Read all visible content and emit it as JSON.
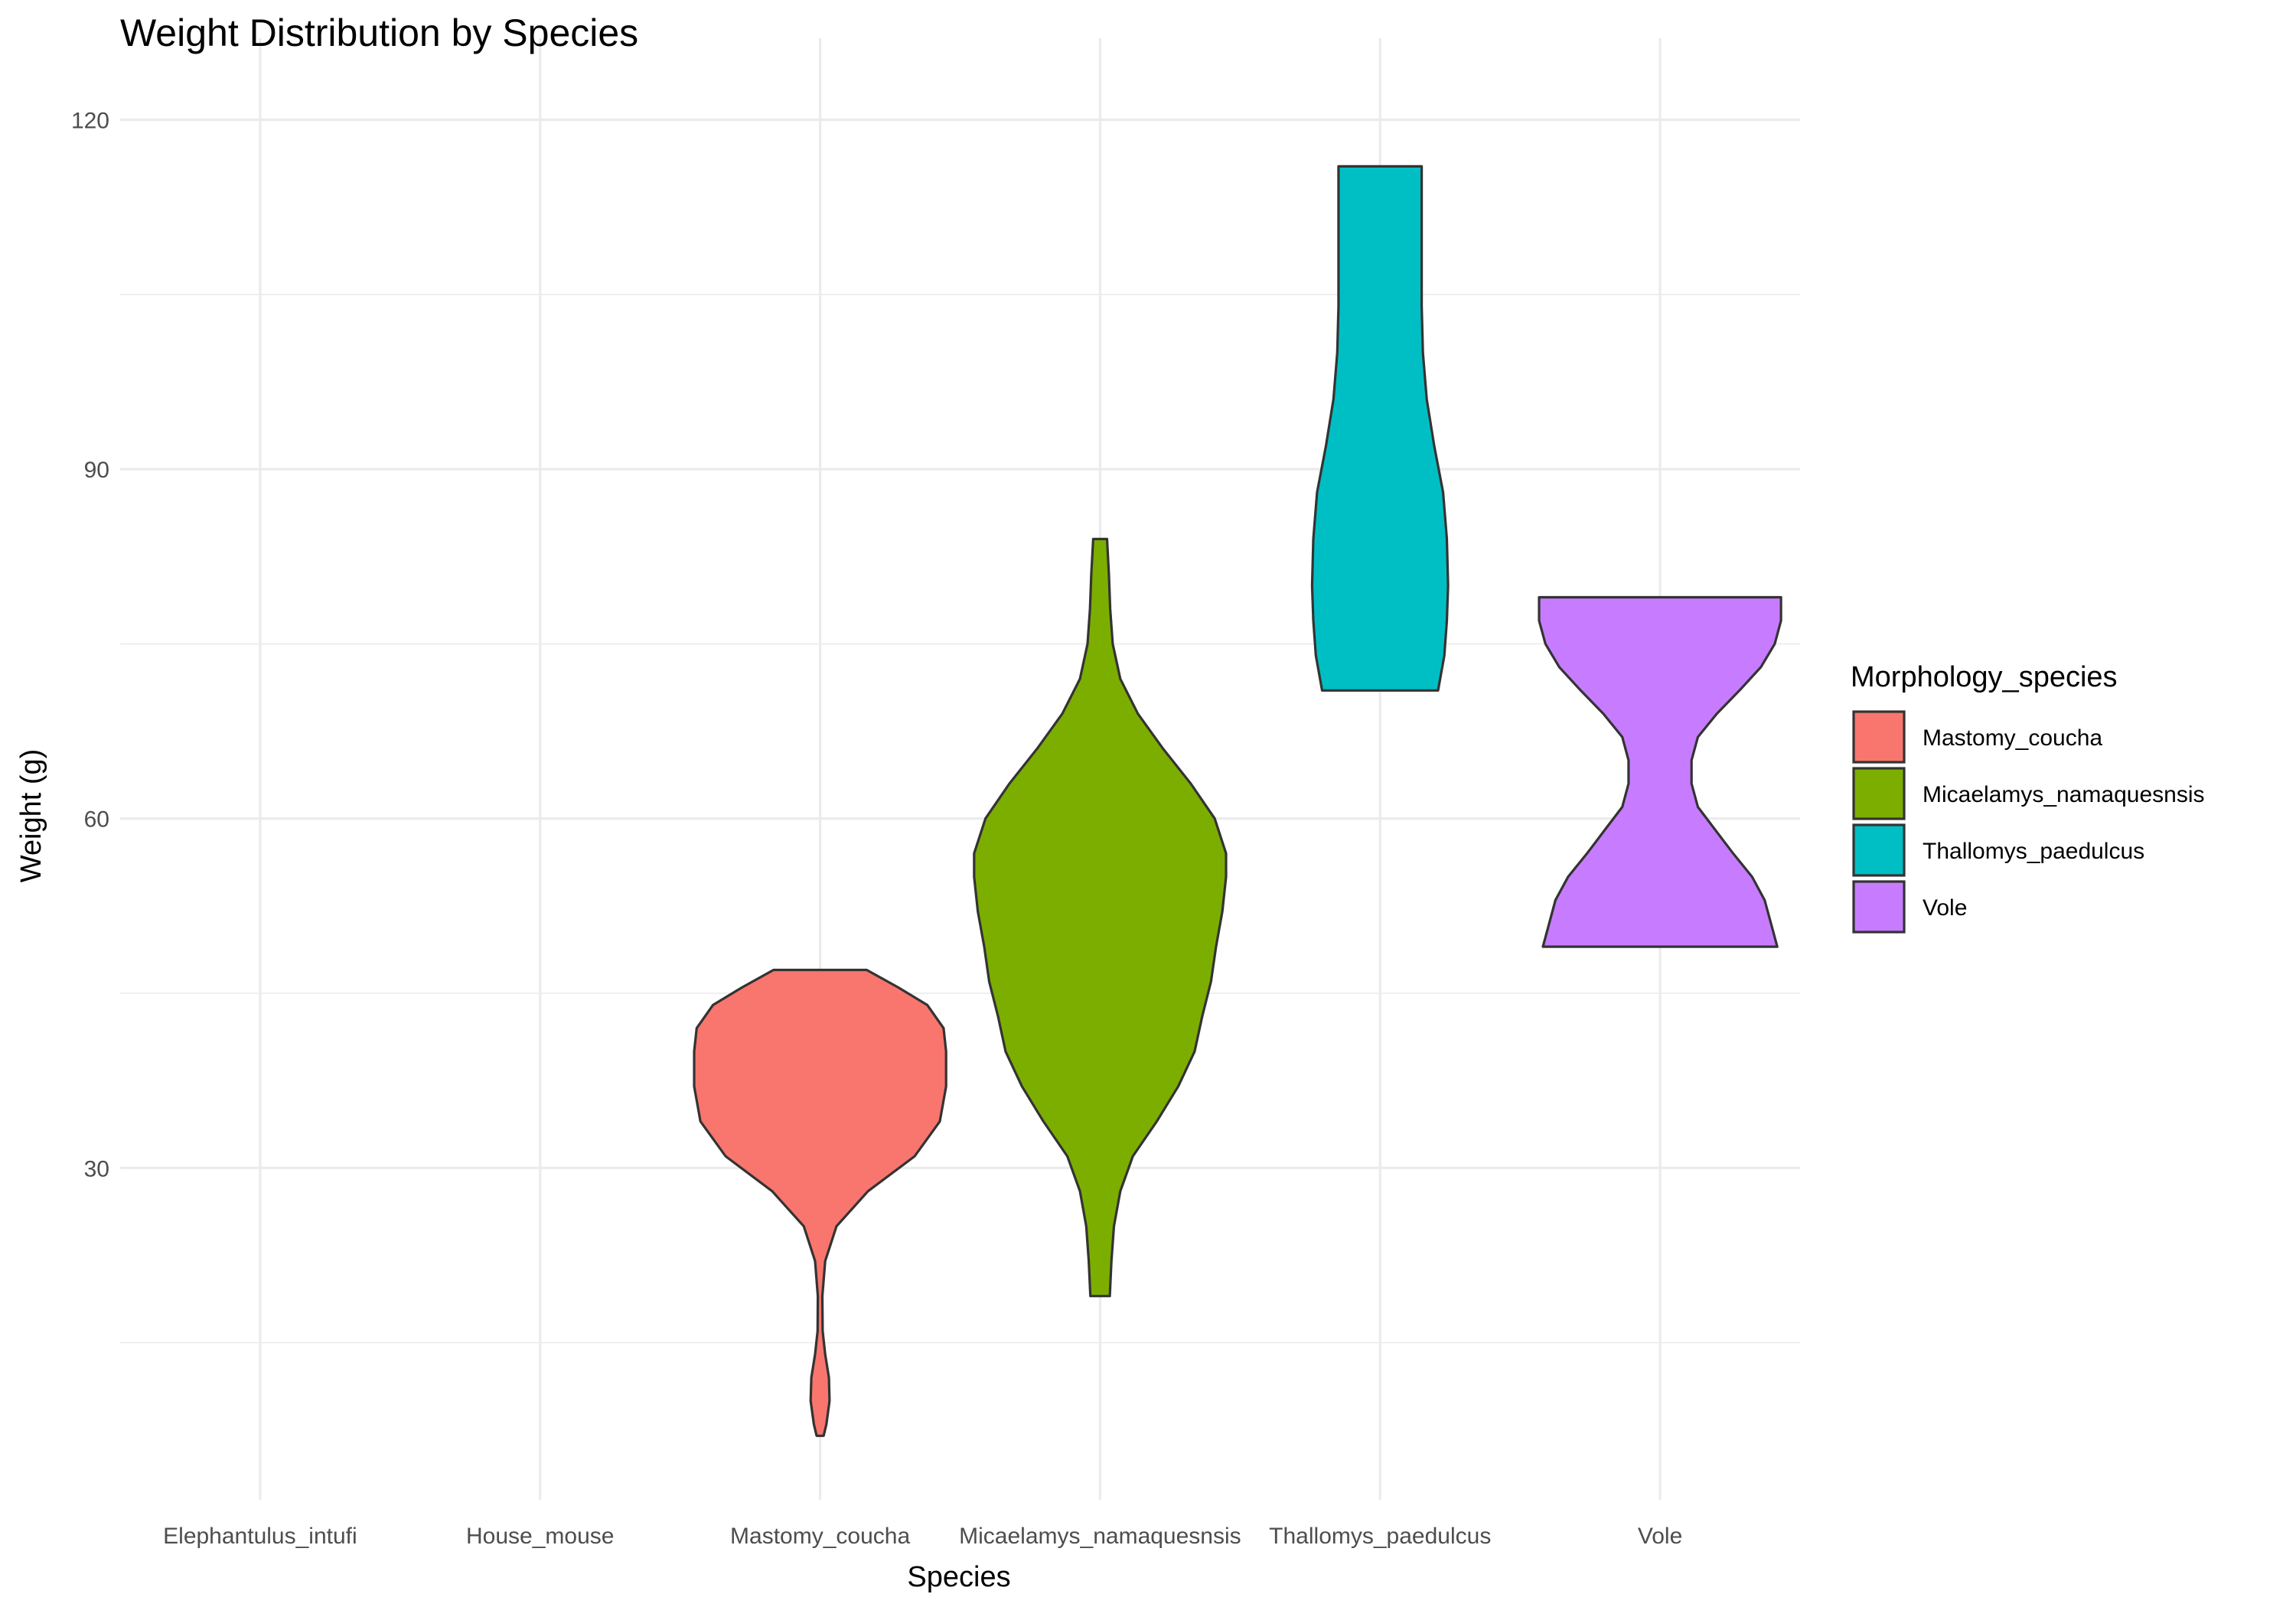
{
  "chart_data": {
    "type": "violin",
    "title": "Weight Distribution by Species",
    "xlabel": "Species",
    "ylabel": "Weight (g)",
    "categories": [
      "Elephantulus_intufi",
      "House_mouse",
      "Mastomy_coucha",
      "Micaelamys_namaquesnsis",
      "Thallomys_paedulcus",
      "Vole"
    ],
    "ylim": [
      1.5,
      127
    ],
    "yticks": [
      30,
      60,
      90,
      120
    ],
    "grid": true,
    "legend": {
      "title": "Morphology_species",
      "placement": "right",
      "entries": [
        {
          "label": "Mastomy_coucha",
          "color": "#F8766D"
        },
        {
          "label": "Micaelamys_namaquesnsis",
          "color": "#7CAE00"
        },
        {
          "label": "Thallomys_paedulcus",
          "color": "#00BFC4"
        },
        {
          "label": "Vole",
          "color": "#C77CFF"
        }
      ]
    },
    "series": [
      {
        "category": "Mastomy_coucha",
        "color": "#F8766D",
        "min": 7,
        "max": 47,
        "profile": [
          [
            7,
            0.028
          ],
          [
            8,
            0.05
          ],
          [
            10,
            0.075
          ],
          [
            12,
            0.07
          ],
          [
            14,
            0.04
          ],
          [
            16,
            0.02
          ],
          [
            19,
            0.018
          ],
          [
            22,
            0.04
          ],
          [
            25,
            0.13
          ],
          [
            28,
            0.38
          ],
          [
            31,
            0.75
          ],
          [
            34,
            0.95
          ],
          [
            37,
            1.0
          ],
          [
            40,
            1.0
          ],
          [
            42,
            0.98
          ],
          [
            44,
            0.85
          ],
          [
            45.5,
            0.62
          ],
          [
            47,
            0.37
          ]
        ]
      },
      {
        "category": "Micaelamys_namaquesnsis",
        "color": "#7CAE00",
        "min": 19,
        "max": 84,
        "profile": [
          [
            19,
            0.077
          ],
          [
            22,
            0.09
          ],
          [
            25,
            0.11
          ],
          [
            28,
            0.16
          ],
          [
            31,
            0.26
          ],
          [
            34,
            0.45
          ],
          [
            37,
            0.62
          ],
          [
            40,
            0.75
          ],
          [
            43,
            0.81
          ],
          [
            46,
            0.88
          ],
          [
            49,
            0.92
          ],
          [
            52,
            0.97
          ],
          [
            55,
            1.0
          ],
          [
            57,
            1.0
          ],
          [
            60,
            0.91
          ],
          [
            63,
            0.72
          ],
          [
            66,
            0.5
          ],
          [
            69,
            0.3
          ],
          [
            72,
            0.16
          ],
          [
            75,
            0.1
          ],
          [
            78,
            0.08
          ],
          [
            81,
            0.07
          ],
          [
            84,
            0.055
          ]
        ]
      },
      {
        "category": "Thallomys_paedulcus",
        "color": "#00BFC4",
        "min": 71,
        "max": 116,
        "profile": [
          [
            71,
            0.46
          ],
          [
            74,
            0.51
          ],
          [
            77,
            0.53
          ],
          [
            80,
            0.54
          ],
          [
            84,
            0.53
          ],
          [
            88,
            0.5
          ],
          [
            92,
            0.43
          ],
          [
            96,
            0.37
          ],
          [
            100,
            0.34
          ],
          [
            104,
            0.33
          ],
          [
            108,
            0.33
          ],
          [
            112,
            0.33
          ],
          [
            116,
            0.33
          ]
        ]
      },
      {
        "category": "Vole",
        "color": "#C77CFF",
        "min": 49,
        "max": 79,
        "profile": [
          [
            49,
            0.93
          ],
          [
            51,
            0.88
          ],
          [
            53,
            0.83
          ],
          [
            55,
            0.73
          ],
          [
            57,
            0.58
          ],
          [
            59,
            0.44
          ],
          [
            61,
            0.3
          ],
          [
            63,
            0.25
          ],
          [
            65,
            0.25
          ],
          [
            67,
            0.3
          ],
          [
            69,
            0.45
          ],
          [
            71,
            0.63
          ],
          [
            73,
            0.8
          ],
          [
            75,
            0.91
          ],
          [
            77,
            0.96
          ],
          [
            79,
            0.96
          ]
        ]
      }
    ]
  }
}
